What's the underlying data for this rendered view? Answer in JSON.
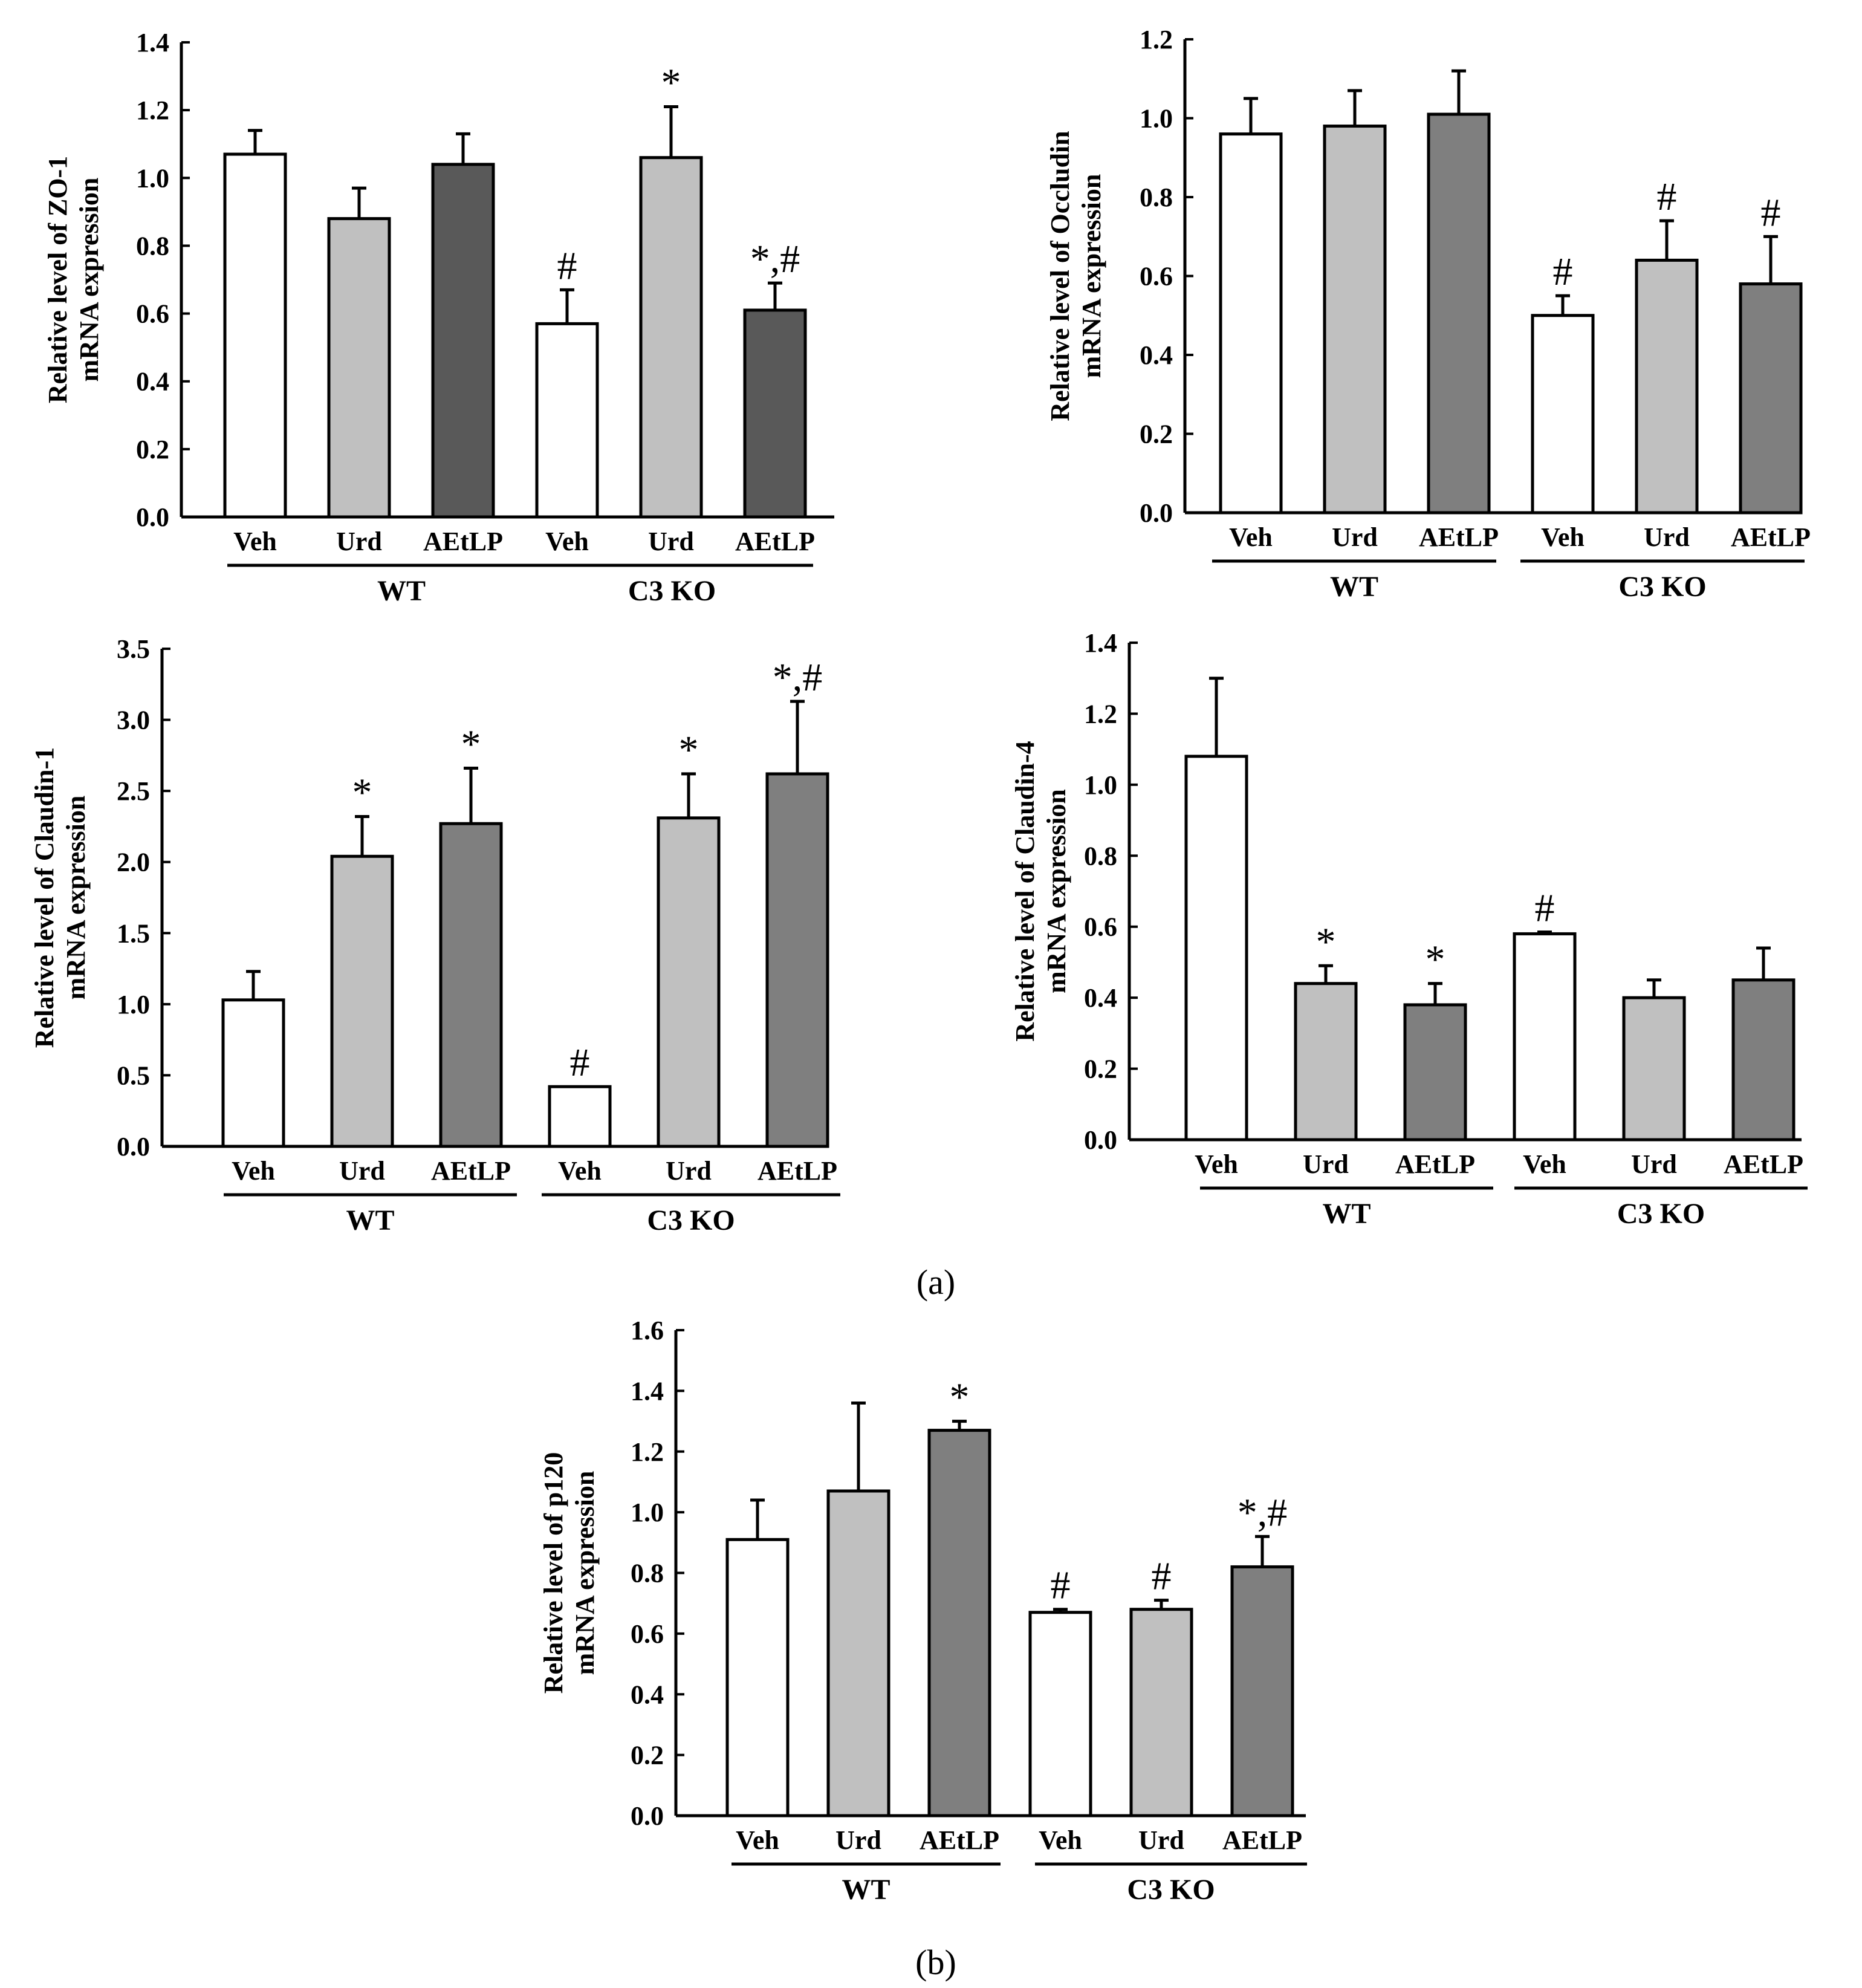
{
  "panel_labels": {
    "a": "(a)",
    "b": "(b)"
  },
  "colors": {
    "veh": "#ffffff",
    "urd": "#c0c0c0",
    "aetlp_dark": "#595959",
    "aetlp": "#7f7f7f"
  },
  "chart_data": [
    {
      "type": "bar",
      "id": "zo1",
      "ylabel": [
        "Relative level of ZO-1",
        "mRNA expression"
      ],
      "ylim": [
        0,
        1.4
      ],
      "yticks": [
        "0.0",
        "0.2",
        "0.4",
        "0.6",
        "0.8",
        "1.0",
        "1.2",
        "1.4"
      ],
      "groups": [
        "WT",
        "C3 KO"
      ],
      "categories": [
        "Veh",
        "Urd",
        "AEtLP",
        "Veh",
        "Urd",
        "AEtLP"
      ],
      "values": [
        1.07,
        0.88,
        1.04,
        0.57,
        1.06,
        0.61
      ],
      "errors": [
        0.07,
        0.09,
        0.09,
        0.1,
        0.15,
        0.08
      ],
      "annotations": [
        "",
        "",
        "",
        "#",
        "*",
        "*,#"
      ],
      "fills": [
        "#ffffff",
        "#c0c0c0",
        "#595959",
        "#ffffff",
        "#c0c0c0",
        "#595959"
      ]
    },
    {
      "type": "bar",
      "id": "occludin",
      "ylabel": [
        "Relative level of Occludin",
        "mRNA expression"
      ],
      "ylim": [
        0,
        1.2
      ],
      "yticks": [
        "0.0",
        "0.2",
        "0.4",
        "0.6",
        "0.8",
        "1.0",
        "1.2"
      ],
      "groups": [
        "WT",
        "C3 KO"
      ],
      "categories": [
        "Veh",
        "Urd",
        "AEtLP",
        "Veh",
        "Urd",
        "AEtLP"
      ],
      "values": [
        0.96,
        0.98,
        1.01,
        0.5,
        0.64,
        0.58
      ],
      "errors": [
        0.09,
        0.09,
        0.11,
        0.05,
        0.1,
        0.12
      ],
      "annotations": [
        "",
        "",
        "",
        "#",
        "#",
        "#"
      ],
      "fills": [
        "#ffffff",
        "#c0c0c0",
        "#7f7f7f",
        "#ffffff",
        "#c0c0c0",
        "#7f7f7f"
      ]
    },
    {
      "type": "bar",
      "id": "claudin1",
      "ylabel": [
        "Relative level of Claudin-1",
        "mRNA expression"
      ],
      "ylim": [
        0,
        3.5
      ],
      "yticks": [
        "0.0",
        "0.5",
        "1.0",
        "1.5",
        "2.0",
        "2.5",
        "3.0",
        "3.5"
      ],
      "groups": [
        "WT",
        "C3 KO"
      ],
      "categories": [
        "Veh",
        "Urd",
        "AEtLP",
        "Veh",
        "Urd",
        "AEtLP"
      ],
      "values": [
        1.03,
        2.04,
        2.27,
        0.42,
        2.31,
        2.62
      ],
      "errors": [
        0.2,
        0.28,
        0.39,
        0.0,
        0.31,
        0.51
      ],
      "annotations": [
        "",
        "*",
        "*",
        "#",
        "*",
        "*,#"
      ],
      "fills": [
        "#ffffff",
        "#c0c0c0",
        "#7f7f7f",
        "#ffffff",
        "#c0c0c0",
        "#7f7f7f"
      ]
    },
    {
      "type": "bar",
      "id": "claudin4",
      "ylabel": [
        "Relative level of Claudin-4",
        "mRNA expression"
      ],
      "ylim": [
        0,
        1.4
      ],
      "yticks": [
        "0.0",
        "0.2",
        "0.4",
        "0.6",
        "0.8",
        "1.0",
        "1.2",
        "1.4"
      ],
      "groups": [
        "WT",
        "C3 KO"
      ],
      "categories": [
        "Veh",
        "Urd",
        "AEtLP",
        "Veh",
        "Urd",
        "AEtLP"
      ],
      "values": [
        1.08,
        0.44,
        0.38,
        0.58,
        0.4,
        0.45
      ],
      "errors": [
        0.22,
        0.05,
        0.06,
        0.005,
        0.05,
        0.09
      ],
      "annotations": [
        "",
        "*",
        "*",
        "#",
        "",
        ""
      ],
      "fills": [
        "#ffffff",
        "#c0c0c0",
        "#7f7f7f",
        "#ffffff",
        "#c0c0c0",
        "#7f7f7f"
      ]
    },
    {
      "type": "bar",
      "id": "p120",
      "ylabel": [
        "Relative level of p120",
        "mRNA expression"
      ],
      "ylim": [
        0,
        1.6
      ],
      "yticks": [
        "0.0",
        "0.2",
        "0.4",
        "0.6",
        "0.8",
        "1.0",
        "1.2",
        "1.4",
        "1.6"
      ],
      "groups": [
        "WT",
        "C3 KO"
      ],
      "categories": [
        "Veh",
        "Urd",
        "AEtLP",
        "Veh",
        "Urd",
        "AEtLP"
      ],
      "values": [
        0.91,
        1.07,
        1.27,
        0.67,
        0.68,
        0.82
      ],
      "errors": [
        0.13,
        0.29,
        0.03,
        0.01,
        0.03,
        0.1
      ],
      "annotations": [
        "",
        "",
        "*",
        "#",
        "#",
        "*,#"
      ],
      "fills": [
        "#ffffff",
        "#c0c0c0",
        "#7f7f7f",
        "#ffffff",
        "#c0c0c0",
        "#7f7f7f"
      ]
    }
  ]
}
